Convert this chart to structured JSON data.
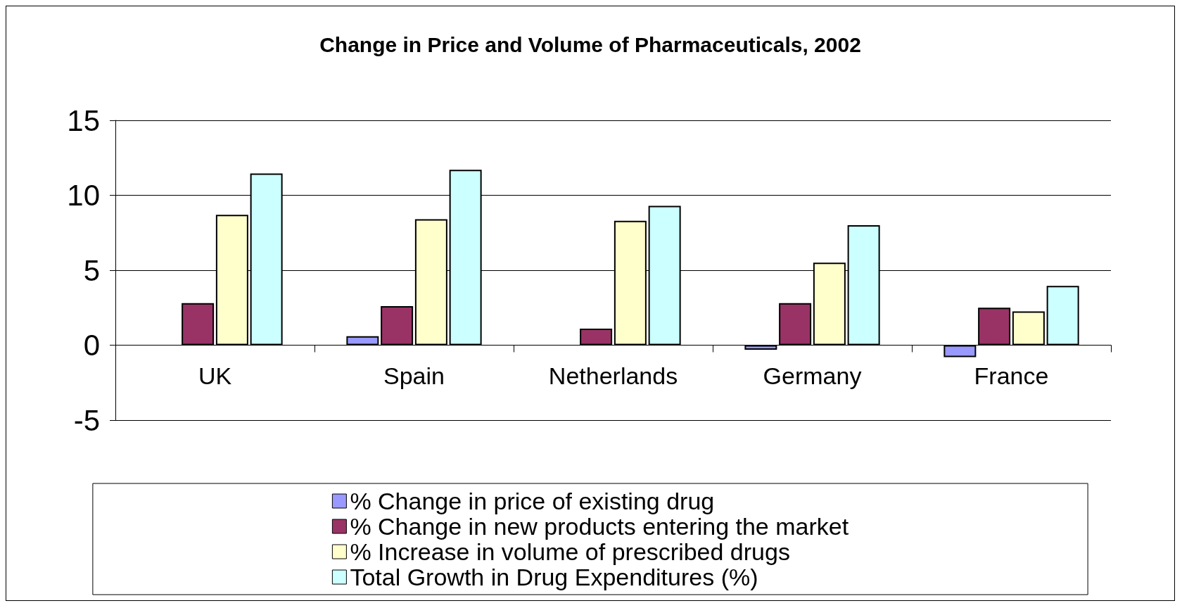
{
  "chart_data": {
    "type": "bar",
    "title": "Change in Price and Volume of Pharmaceuticals, 2002",
    "categories": [
      "UK",
      "Spain",
      "Netherlands",
      "Germany",
      "France"
    ],
    "series": [
      {
        "name": "% Change in price of existing drug",
        "color": "#9999ff",
        "values": [
          null,
          0.6,
          null,
          -0.3,
          -0.8
        ]
      },
      {
        "name": "% Change in new products entering the market",
        "color": "#993366",
        "values": [
          2.8,
          2.6,
          1.1,
          2.8,
          2.5
        ]
      },
      {
        "name": "% Increase in volume of prescribed drugs",
        "color": "#ffffcc",
        "values": [
          8.7,
          8.4,
          8.3,
          5.5,
          2.25
        ]
      },
      {
        "name": "Total Growth in Drug Expenditures (%)",
        "color": "#ccffff",
        "values": [
          11.45,
          11.7,
          9.3,
          8.0,
          3.95
        ]
      }
    ],
    "ylim": [
      -5,
      15
    ],
    "yticks": [
      -5,
      0,
      5,
      10,
      15
    ],
    "grid": "y",
    "legend": "bottom"
  }
}
